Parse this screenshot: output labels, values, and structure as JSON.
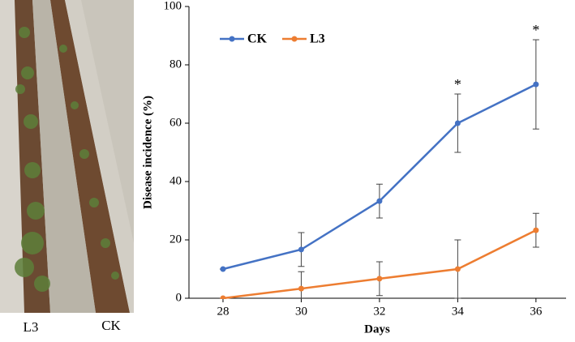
{
  "photo": {
    "labels": [
      "L3",
      "CK"
    ]
  },
  "chart_data": {
    "type": "line",
    "x_label": "Days",
    "y_label": "Disease incidence (%)",
    "x": [
      28,
      30,
      32,
      34,
      36
    ],
    "series": [
      {
        "name": "CK",
        "color": "#4472c4",
        "values": [
          10,
          16.7,
          33.3,
          60,
          73.3
        ],
        "errors": [
          0,
          5.8,
          5.8,
          10,
          15.3
        ]
      },
      {
        "name": "L3",
        "color": "#ed7d31",
        "values": [
          0,
          3.3,
          6.7,
          10,
          23.3
        ],
        "errors": [
          0,
          5.8,
          5.8,
          10,
          5.8
        ]
      }
    ],
    "annotations": [
      {
        "text": "*",
        "x": 34,
        "series": 0
      },
      {
        "text": "*",
        "x": 36,
        "series": 0
      }
    ],
    "xlim": [
      27.13,
      36.77
    ],
    "xticks": [
      28,
      30,
      32,
      34,
      36
    ],
    "ylim": [
      0,
      100
    ],
    "yticks": [
      0,
      20,
      40,
      60,
      80,
      100
    ],
    "legend": "upper left"
  }
}
